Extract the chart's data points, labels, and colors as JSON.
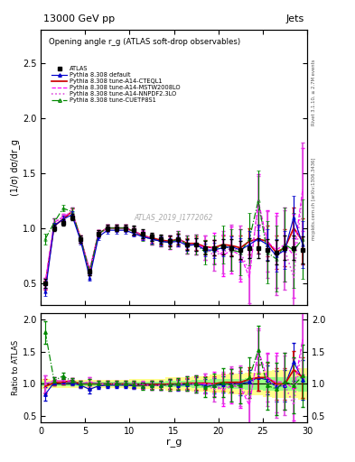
{
  "title_top": "13000 GeV pp",
  "title_right": "Jets",
  "plot_title": "Opening angle r_g (ATLAS soft-drop observables)",
  "xlabel": "r_g",
  "ylabel_main": "(1/σ) dσ/dr_g",
  "ylabel_ratio": "Ratio to ATLAS",
  "right_label_top": "Rivet 3.1.10, ≥ 2.7M events",
  "right_label_bottom": "mcplots.cern.ch [arXiv:1306.3436]",
  "watermark": "ATLAS_2019_I1772062",
  "xlim": [
    0,
    30
  ],
  "ylim_main": [
    0.3,
    2.8
  ],
  "ylim_ratio": [
    0.4,
    2.1
  ],
  "yticks_main": [
    0.5,
    1.0,
    1.5,
    2.0,
    2.5
  ],
  "yticks_ratio": [
    0.5,
    1.0,
    1.5,
    2.0
  ],
  "x_data": [
    0.5,
    1.5,
    2.5,
    3.5,
    4.5,
    5.5,
    6.5,
    7.5,
    8.5,
    9.5,
    10.5,
    11.5,
    12.5,
    13.5,
    14.5,
    15.5,
    16.5,
    17.5,
    18.5,
    19.5,
    20.5,
    21.5,
    22.5,
    23.5,
    24.5,
    25.5,
    26.5,
    27.5,
    28.5,
    29.5
  ],
  "atlas_y": [
    0.5,
    1.0,
    1.05,
    1.1,
    0.9,
    0.6,
    0.95,
    1.0,
    1.0,
    1.0,
    0.98,
    0.95,
    0.92,
    0.9,
    0.88,
    0.9,
    0.85,
    0.85,
    0.82,
    0.82,
    0.83,
    0.82,
    0.8,
    0.82,
    0.82,
    0.8,
    0.78,
    0.82,
    0.82,
    0.8
  ],
  "atlas_yerr": [
    0.04,
    0.03,
    0.03,
    0.03,
    0.03,
    0.03,
    0.03,
    0.03,
    0.03,
    0.03,
    0.04,
    0.04,
    0.04,
    0.04,
    0.05,
    0.05,
    0.05,
    0.06,
    0.06,
    0.07,
    0.07,
    0.08,
    0.08,
    0.09,
    0.09,
    0.1,
    0.11,
    0.11,
    0.11,
    0.12
  ],
  "default_y": [
    0.42,
    1.02,
    1.08,
    1.12,
    0.88,
    0.55,
    0.92,
    0.98,
    0.98,
    0.98,
    0.95,
    0.92,
    0.9,
    0.88,
    0.87,
    0.88,
    0.84,
    0.85,
    0.8,
    0.8,
    0.82,
    0.83,
    0.8,
    0.85,
    0.9,
    0.85,
    0.75,
    0.8,
    1.1,
    0.85
  ],
  "default_yerr": [
    0.04,
    0.03,
    0.03,
    0.03,
    0.03,
    0.03,
    0.03,
    0.03,
    0.03,
    0.03,
    0.03,
    0.03,
    0.04,
    0.04,
    0.04,
    0.05,
    0.05,
    0.06,
    0.06,
    0.07,
    0.08,
    0.09,
    0.11,
    0.12,
    0.13,
    0.14,
    0.15,
    0.17,
    0.19,
    0.21
  ],
  "cteql1_y": [
    0.48,
    1.02,
    1.08,
    1.15,
    0.9,
    0.6,
    0.95,
    1.0,
    1.0,
    1.0,
    0.97,
    0.93,
    0.91,
    0.89,
    0.88,
    0.9,
    0.86,
    0.86,
    0.83,
    0.82,
    0.85,
    0.84,
    0.82,
    0.88,
    0.9,
    0.88,
    0.78,
    0.82,
    1.0,
    0.88
  ],
  "cteql1_yerr": [
    0.04,
    0.03,
    0.03,
    0.03,
    0.03,
    0.03,
    0.03,
    0.03,
    0.03,
    0.03,
    0.03,
    0.03,
    0.04,
    0.04,
    0.04,
    0.05,
    0.05,
    0.06,
    0.06,
    0.07,
    0.08,
    0.09,
    0.11,
    0.12,
    0.13,
    0.14,
    0.15,
    0.17,
    0.19,
    0.21
  ],
  "mstw_y": [
    0.5,
    1.05,
    1.1,
    1.15,
    0.9,
    0.62,
    0.95,
    1.0,
    1.0,
    1.0,
    0.97,
    0.93,
    0.9,
    0.88,
    0.87,
    0.9,
    0.85,
    0.85,
    0.82,
    0.82,
    0.75,
    0.8,
    0.75,
    0.55,
    1.25,
    0.88,
    0.8,
    0.85,
    0.75,
    1.35
  ],
  "mstw_yerr": [
    0.05,
    0.04,
    0.03,
    0.04,
    0.03,
    0.03,
    0.03,
    0.03,
    0.03,
    0.03,
    0.04,
    0.04,
    0.05,
    0.05,
    0.06,
    0.07,
    0.08,
    0.09,
    0.11,
    0.14,
    0.19,
    0.21,
    0.24,
    0.28,
    0.24,
    0.28,
    0.34,
    0.34,
    0.38,
    0.38
  ],
  "nnpdf_y": [
    0.5,
    1.05,
    1.1,
    1.15,
    0.9,
    0.62,
    0.95,
    1.0,
    1.0,
    1.0,
    0.97,
    0.94,
    0.9,
    0.88,
    0.87,
    0.9,
    0.85,
    0.85,
    0.82,
    0.75,
    0.78,
    0.82,
    0.78,
    0.6,
    1.2,
    0.85,
    0.75,
    0.8,
    0.55,
    1.35
  ],
  "nnpdf_yerr": [
    0.05,
    0.04,
    0.03,
    0.04,
    0.03,
    0.03,
    0.03,
    0.03,
    0.03,
    0.03,
    0.04,
    0.04,
    0.05,
    0.05,
    0.06,
    0.07,
    0.08,
    0.09,
    0.11,
    0.14,
    0.19,
    0.21,
    0.24,
    0.28,
    0.27,
    0.3,
    0.36,
    0.36,
    0.43,
    0.43
  ],
  "cuetp_y": [
    0.9,
    1.05,
    1.18,
    1.15,
    0.9,
    0.6,
    0.95,
    1.0,
    1.0,
    1.0,
    0.97,
    0.92,
    0.9,
    0.88,
    0.87,
    0.9,
    0.85,
    0.85,
    0.78,
    0.8,
    0.85,
    0.8,
    0.78,
    0.9,
    1.25,
    0.78,
    0.72,
    0.85,
    0.8,
    0.9
  ],
  "cuetp_yerr": [
    0.05,
    0.04,
    0.03,
    0.04,
    0.03,
    0.03,
    0.03,
    0.03,
    0.03,
    0.03,
    0.04,
    0.04,
    0.05,
    0.05,
    0.06,
    0.07,
    0.08,
    0.09,
    0.11,
    0.13,
    0.17,
    0.19,
    0.21,
    0.24,
    0.27,
    0.28,
    0.3,
    0.34,
    0.34,
    0.36
  ],
  "color_atlas": "#000000",
  "color_default": "#0000cc",
  "color_cteql1": "#cc0000",
  "color_mstw": "#ff00ff",
  "color_nnpdf": "#dd44dd",
  "color_cuetp": "#008800",
  "band_yellow": "#ffff80",
  "band_green": "#80ff80",
  "legend_entries": [
    "ATLAS",
    "Pythia 8.308 default",
    "Pythia 8.308 tune-A14-CTEQL1",
    "Pythia 8.308 tune-A14-MSTW2008LO",
    "Pythia 8.308 tune-A14-NNPDF2.3LO",
    "Pythia 8.308 tune-CUETP8S1"
  ]
}
